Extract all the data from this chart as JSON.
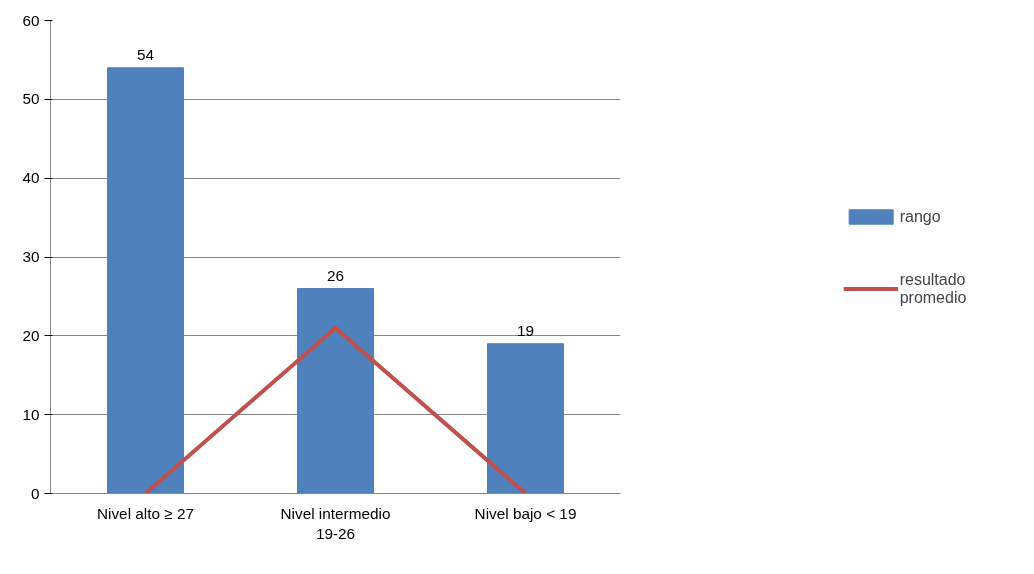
{
  "chart_data": {
    "type": "bar",
    "categories": [
      "Nivel alto ≥ 27",
      "Nivel intermedio 19-26",
      "Nivel bajo < 19"
    ],
    "series": [
      {
        "name": "rango",
        "type": "bar",
        "color": "#4f81bd",
        "values": [
          54,
          26,
          19
        ],
        "data_labels": true
      },
      {
        "name": "resultado promedio",
        "type": "line",
        "color": "#c0504d",
        "values": [
          0,
          21,
          0
        ]
      }
    ],
    "ylim": [
      0,
      60
    ],
    "yticks": [
      0,
      10,
      20,
      30,
      40,
      50,
      60
    ],
    "grid": "y",
    "legend": "right",
    "marker": "none",
    "line_style": "solid"
  }
}
